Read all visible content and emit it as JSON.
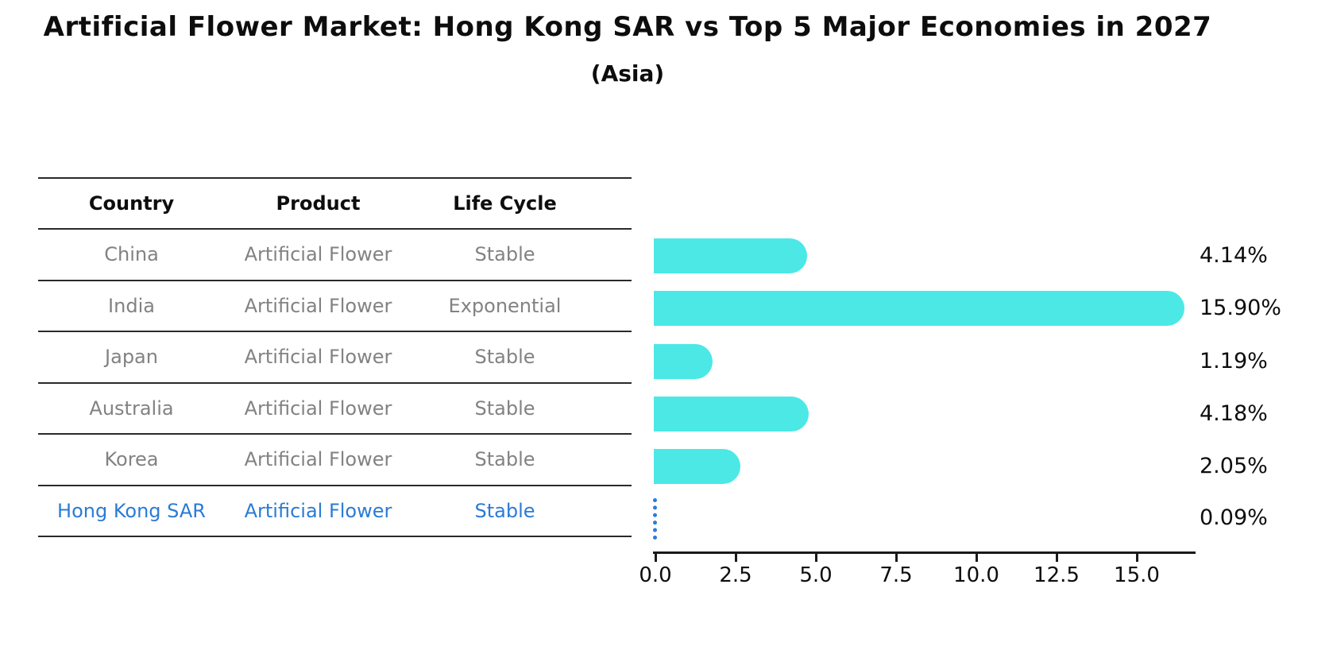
{
  "title": "Artificial Flower Market: Hong Kong SAR vs Top 5 Major Economies in 2027",
  "subtitle": "(Asia)",
  "table": {
    "headers": [
      "Country",
      "Product",
      "Life Cycle"
    ],
    "rows": [
      {
        "country": "China",
        "product": "Artificial Flower",
        "life_cycle": "Stable",
        "highlighted": false
      },
      {
        "country": "India",
        "product": "Artificial Flower",
        "life_cycle": "Exponential",
        "highlighted": false
      },
      {
        "country": "Japan",
        "product": "Artificial Flower",
        "life_cycle": "Stable",
        "highlighted": false
      },
      {
        "country": "Australia",
        "product": "Artificial Flower",
        "life_cycle": "Stable",
        "highlighted": false
      },
      {
        "country": "Korea",
        "product": "Artificial Flower",
        "life_cycle": "Stable",
        "highlighted": false
      },
      {
        "country": "Hong Kong SAR",
        "product": "Artificial Flower",
        "life_cycle": "Stable",
        "highlighted": true
      }
    ]
  },
  "chart_data": {
    "type": "bar",
    "orientation": "horizontal",
    "title": "Artificial Flower Market: Hong Kong SAR vs Top 5 Major Economies in 2027",
    "subtitle": "(Asia)",
    "categories": [
      "China",
      "India",
      "Japan",
      "Australia",
      "Korea",
      "Hong Kong SAR"
    ],
    "values": [
      4.14,
      15.9,
      1.19,
      4.18,
      2.05,
      0.09
    ],
    "value_labels": [
      "4.14%",
      "15.90%",
      "1.19%",
      "4.18%",
      "2.05%",
      "0.09%"
    ],
    "x_ticks": [
      "0.0",
      "2.5",
      "5.0",
      "7.5",
      "10.0",
      "12.5",
      "15.0"
    ],
    "x_tick_values": [
      0.0,
      2.5,
      5.0,
      7.5,
      10.0,
      12.5,
      15.0
    ],
    "xlim": [
      0,
      16.8
    ],
    "xlabel": "",
    "ylabel": "",
    "grid": false,
    "legend": false,
    "bar_color": "#4BE8E6",
    "highlight_color": "#2B7BD5",
    "text_color": "#0d0d0d",
    "muted_text_color": "#828282"
  }
}
